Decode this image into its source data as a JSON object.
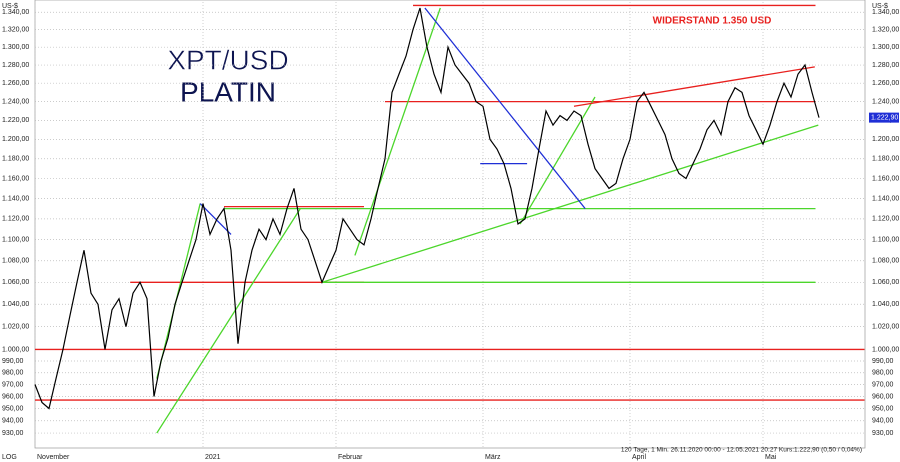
{
  "chart_data": {
    "type": "line",
    "log_scale": true,
    "grid": true,
    "color": "#000000",
    "title": "XPT/USD",
    "subtitle": "PLATIN",
    "annotation": "WIDERSTAND 1.350 USD",
    "y_unit": "US-$",
    "scale_label": "LOG",
    "footnote": "120 Tage, 1 Min. 26.11.2020 00:00 - 12.05.2021 20:27  Kurs:1.222,90 (0,50 / 0,04%)",
    "last_label": "1.222,90",
    "categories": [
      "November",
      null,
      null,
      null,
      null,
      null,
      null,
      null,
      null,
      null,
      null,
      null,
      null,
      null,
      null,
      null,
      null,
      null,
      null,
      null,
      null,
      null,
      null,
      null,
      "2021",
      null,
      null,
      null,
      null,
      null,
      null,
      null,
      null,
      null,
      null,
      null,
      null,
      null,
      null,
      null,
      null,
      null,
      null,
      "Februar",
      null,
      null,
      null,
      null,
      null,
      null,
      null,
      null,
      null,
      null,
      null,
      null,
      null,
      null,
      null,
      null,
      null,
      null,
      null,
      null,
      "März",
      null,
      null,
      null,
      null,
      null,
      null,
      null,
      null,
      null,
      null,
      null,
      null,
      null,
      null,
      null,
      null,
      null,
      null,
      null,
      null,
      "April",
      null,
      null,
      null,
      null,
      null,
      null,
      null,
      null,
      null,
      null,
      null,
      null,
      null,
      null,
      null,
      null,
      null,
      null,
      "Mai",
      null,
      null,
      null,
      null,
      null,
      null,
      null,
      null
    ],
    "values": [
      970,
      955,
      950,
      975,
      1000,
      1030,
      1060,
      1090,
      1050,
      1040,
      1000,
      1035,
      1045,
      1020,
      1050,
      1060,
      1045,
      960,
      990,
      1010,
      1040,
      1060,
      1080,
      1100,
      1135,
      1105,
      1120,
      1130,
      1090,
      1005,
      1060,
      1090,
      1110,
      1100,
      1120,
      1105,
      1130,
      1150,
      1110,
      1100,
      1080,
      1060,
      1075,
      1090,
      1120,
      1110,
      1100,
      1095,
      1120,
      1150,
      1180,
      1250,
      1270,
      1290,
      1320,
      1345,
      1300,
      1270,
      1250,
      1300,
      1280,
      1270,
      1260,
      1240,
      1235,
      1200,
      1190,
      1175,
      1150,
      1115,
      1120,
      1150,
      1190,
      1230,
      1215,
      1225,
      1220,
      1230,
      1225,
      1195,
      1170,
      1160,
      1150,
      1155,
      1180,
      1200,
      1240,
      1250,
      1235,
      1220,
      1205,
      1180,
      1165,
      1160,
      1175,
      1190,
      1210,
      1220,
      1205,
      1240,
      1255,
      1250,
      1225,
      1210,
      1195,
      1215,
      1240,
      1260,
      1245,
      1270,
      1280,
      1250,
      1222.9
    ],
    "ylim": [
      922,
      1352
    ],
    "yticks": [
      {
        "value": 930,
        "label": "930,00"
      },
      {
        "value": 940,
        "label": "940,00"
      },
      {
        "value": 950,
        "label": "950,00"
      },
      {
        "value": 960,
        "label": "960,00"
      },
      {
        "value": 970,
        "label": "970,00"
      },
      {
        "value": 980,
        "label": "980,00"
      },
      {
        "value": 990,
        "label": "990,00"
      },
      {
        "value": 1000,
        "label": "1.000,00"
      },
      {
        "value": 1020,
        "label": "1.020,00"
      },
      {
        "value": 1040,
        "label": "1.040,00"
      },
      {
        "value": 1060,
        "label": "1.060,00"
      },
      {
        "value": 1080,
        "label": "1.080,00"
      },
      {
        "value": 1100,
        "label": "1.100,00"
      },
      {
        "value": 1120,
        "label": "1.120,00"
      },
      {
        "value": 1140,
        "label": "1.140,00"
      },
      {
        "value": 1160,
        "label": "1.160,00"
      },
      {
        "value": 1180,
        "label": "1.180,00"
      },
      {
        "value": 1200,
        "label": "1.200,00"
      },
      {
        "value": 1220,
        "label": "1.220,00"
      },
      {
        "value": 1240,
        "label": "1.240,00"
      },
      {
        "value": 1260,
        "label": "1.260,00"
      },
      {
        "value": 1280,
        "label": "1.280,00"
      },
      {
        "value": 1300,
        "label": "1.300,00"
      },
      {
        "value": 1320,
        "label": "1.320,00"
      },
      {
        "value": 1340,
        "label": "1.340,00"
      }
    ],
    "trend_lines": [
      {
        "color": "#e8201e",
        "x0": 54,
        "y0": 1348,
        "x1": 111.5,
        "y1": 1348
      },
      {
        "color": "#e8201e",
        "x0": 50,
        "y0": 1240,
        "x1": 111.5,
        "y1": 1240
      },
      {
        "color": "#e8201e",
        "x0": 13.6,
        "y0": 1060,
        "x1": 47,
        "y1": 1060
      },
      {
        "color": "#e8201e",
        "x0": 0,
        "y0": 1000,
        "x1": 118.5,
        "y1": 1000
      },
      {
        "color": "#e8201e",
        "x0": 0,
        "y0": 957,
        "x1": 118.5,
        "y1": 957
      },
      {
        "color": "#4cd62b",
        "x0": 27,
        "y0": 1130,
        "x1": 111.5,
        "y1": 1130
      },
      {
        "color": "#e8201e",
        "x0": 27,
        "y0": 1132,
        "x1": 47,
        "y1": 1132
      },
      {
        "color": "#4cd62b",
        "x0": 41,
        "y0": 1060,
        "x1": 111.5,
        "y1": 1060
      },
      {
        "color": "#4cd62b",
        "x0": 17.4,
        "y0": 930,
        "x1": 37.9,
        "y1": 1130
      },
      {
        "color": "#4cd62b",
        "x0": 17.4,
        "y0": 975,
        "x1": 23.6,
        "y1": 1135
      },
      {
        "color": "#4cd62b",
        "x0": 45.7,
        "y0": 1085,
        "x1": 57.9,
        "y1": 1345
      },
      {
        "color": "#4cd62b",
        "x0": 41,
        "y0": 1060,
        "x1": 111.9,
        "y1": 1215
      },
      {
        "color": "#4cd62b",
        "x0": 69.3,
        "y0": 1115,
        "x1": 80,
        "y1": 1245
      },
      {
        "color": "#e8201e",
        "x0": 77,
        "y0": 1235,
        "x1": 111.4,
        "y1": 1278
      },
      {
        "color": "#1f2fd6",
        "x0": 55.7,
        "y0": 1345,
        "x1": 78.6,
        "y1": 1130
      },
      {
        "color": "#1f2fd6",
        "x0": 63.6,
        "y0": 1175,
        "x1": 70.3,
        "y1": 1175
      },
      {
        "color": "#1f2fd6",
        "x0": 23.6,
        "y0": 1135,
        "x1": 28,
        "y1": 1105
      }
    ]
  }
}
